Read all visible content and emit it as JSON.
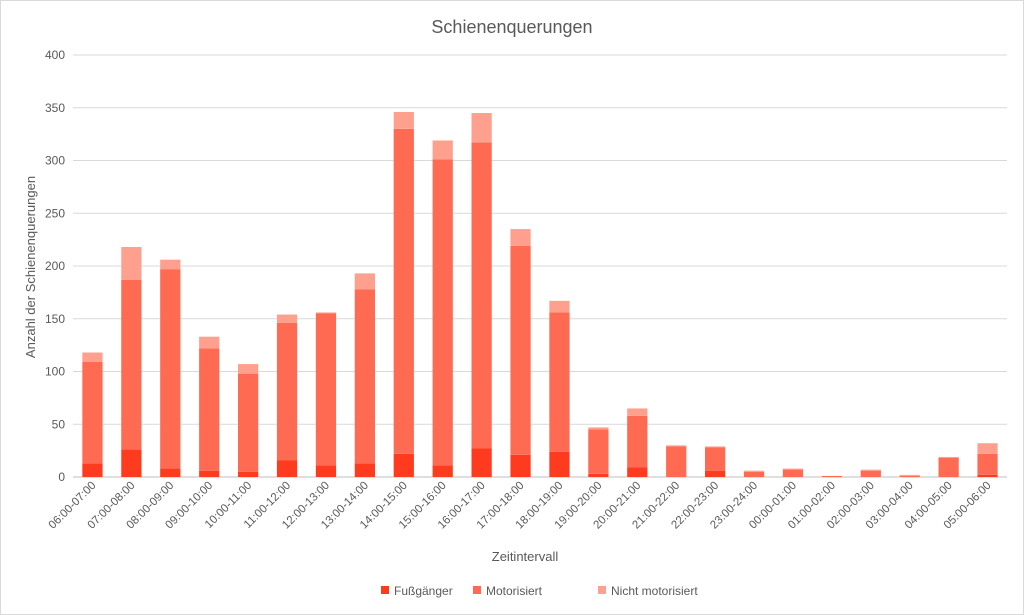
{
  "chart_data": {
    "type": "bar",
    "stacked": true,
    "title": "Schienenquerungen",
    "xlabel": "Zeitintervall",
    "ylabel": "Anzahl der Schienenquerungen",
    "ylim": [
      0,
      400
    ],
    "yticks": [
      0,
      50,
      100,
      150,
      200,
      250,
      300,
      350,
      400
    ],
    "grid": true,
    "legend_position": "bottom",
    "categories": [
      "06:00-07:00",
      "07:00-08:00",
      "08:00-09:00",
      "09:00-10:00",
      "10:00-11:00",
      "11:00-12:00",
      "12:00-13:00",
      "13:00-14:00",
      "14:00-15:00",
      "15:00-16:00",
      "16:00-17:00",
      "17:00-18:00",
      "18:00-19:00",
      "19:00-20:00",
      "20:00-21:00",
      "21:00-22:00",
      "22:00-23:00",
      "23:00-24:00",
      "00:00-01:00",
      "01:00-02:00",
      "02:00-03:00",
      "03:00-04:00",
      "04:00-05:00",
      "05:00-06:00"
    ],
    "series": [
      {
        "name": "Fußgänger",
        "color": "#ff3b1f",
        "values": [
          13,
          26,
          8,
          6,
          5,
          16,
          11,
          13,
          22,
          11,
          27,
          21,
          24,
          3,
          9,
          0,
          6,
          0,
          0,
          0,
          0,
          0,
          0,
          2
        ]
      },
      {
        "name": "Motorisiert",
        "color": "#ff6b52",
        "values": [
          96,
          161,
          189,
          116,
          93,
          130,
          144,
          165,
          308,
          290,
          290,
          198,
          132,
          42,
          49,
          29,
          22,
          5,
          7,
          1,
          6,
          1,
          18,
          20
        ]
      },
      {
        "name": "Nicht motorisiert",
        "color": "#ffa08f",
        "values": [
          9,
          31,
          9,
          11,
          9,
          8,
          1,
          15,
          16,
          18,
          28,
          16,
          11,
          2,
          7,
          1,
          1,
          1,
          1,
          0,
          1,
          1,
          1,
          10
        ]
      }
    ]
  }
}
